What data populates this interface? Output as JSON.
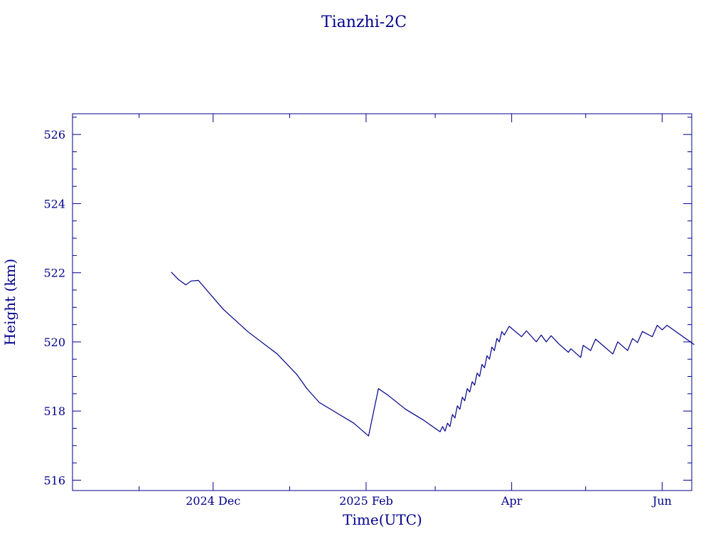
{
  "colors": {
    "ink": "#00008b",
    "background": "#ffffff"
  },
  "chart_data": {
    "type": "line",
    "title": "Tianzhi-2C",
    "xlabel": "Time(UTC)",
    "ylabel": "Height (km)",
    "grid": false,
    "x_range": [
      "2024-10-05",
      "2025-06-13"
    ],
    "ylim": [
      515.7,
      526.6
    ],
    "x_major_ticks": [
      {
        "date": "2024-12-01",
        "label": "2024 Dec"
      },
      {
        "date": "2025-02-01",
        "label": "2025 Feb"
      },
      {
        "date": "2025-04-01",
        "label": "Apr"
      },
      {
        "date": "2025-06-01",
        "label": "Jun"
      }
    ],
    "x_minor_ticks": [
      "2024-11-01",
      "2025-01-01",
      "2025-03-01",
      "2025-05-01"
    ],
    "y_major_ticks": [
      516,
      518,
      520,
      522,
      524,
      526
    ],
    "y_minor_step": 0.5,
    "series": [
      {
        "points": [
          [
            "2024-11-14",
            522.02
          ],
          [
            "2024-11-17",
            521.8
          ],
          [
            "2024-11-20",
            521.65
          ],
          [
            "2024-11-22",
            521.76
          ],
          [
            "2024-11-25",
            521.78
          ],
          [
            "2024-12-05",
            520.95
          ],
          [
            "2024-12-15",
            520.3
          ],
          [
            "2024-12-27",
            519.65
          ],
          [
            "2025-01-04",
            519.05
          ],
          [
            "2025-01-08",
            518.65
          ],
          [
            "2025-01-13",
            518.25
          ],
          [
            "2025-01-20",
            517.95
          ],
          [
            "2025-01-27",
            517.65
          ],
          [
            "2025-01-31",
            517.4
          ],
          [
            "2025-02-02",
            517.28
          ],
          [
            "2025-02-06",
            518.65
          ],
          [
            "2025-02-10",
            518.45
          ],
          [
            "2025-02-17",
            518.05
          ],
          [
            "2025-02-24",
            517.75
          ],
          [
            "2025-03-01",
            517.5
          ],
          [
            "2025-03-03",
            517.4
          ],
          [
            "2025-03-04",
            517.55
          ],
          [
            "2025-03-05",
            517.42
          ],
          [
            "2025-03-06",
            517.65
          ],
          [
            "2025-03-07",
            517.55
          ],
          [
            "2025-03-08",
            517.9
          ],
          [
            "2025-03-09",
            517.8
          ],
          [
            "2025-03-10",
            518.15
          ],
          [
            "2025-03-11",
            518.05
          ],
          [
            "2025-03-12",
            518.4
          ],
          [
            "2025-03-13",
            518.3
          ],
          [
            "2025-03-14",
            518.65
          ],
          [
            "2025-03-15",
            518.55
          ],
          [
            "2025-03-16",
            518.85
          ],
          [
            "2025-03-17",
            518.75
          ],
          [
            "2025-03-18",
            519.1
          ],
          [
            "2025-03-19",
            519.0
          ],
          [
            "2025-03-20",
            519.35
          ],
          [
            "2025-03-21",
            519.25
          ],
          [
            "2025-03-22",
            519.6
          ],
          [
            "2025-03-23",
            519.5
          ],
          [
            "2025-03-24",
            519.85
          ],
          [
            "2025-03-25",
            519.75
          ],
          [
            "2025-03-26",
            520.1
          ],
          [
            "2025-03-27",
            520.0
          ],
          [
            "2025-03-28",
            520.3
          ],
          [
            "2025-03-29",
            520.2
          ],
          [
            "2025-03-31",
            520.45
          ],
          [
            "2025-04-05",
            520.15
          ],
          [
            "2025-04-07",
            520.32
          ],
          [
            "2025-04-11",
            520.0
          ],
          [
            "2025-04-13",
            520.2
          ],
          [
            "2025-04-15",
            520.0
          ],
          [
            "2025-04-17",
            520.18
          ],
          [
            "2025-04-20",
            519.95
          ],
          [
            "2025-04-24",
            519.7
          ],
          [
            "2025-04-25",
            519.8
          ],
          [
            "2025-04-29",
            519.55
          ],
          [
            "2025-04-30",
            519.9
          ],
          [
            "2025-05-03",
            519.75
          ],
          [
            "2025-05-05",
            520.08
          ],
          [
            "2025-05-12",
            519.65
          ],
          [
            "2025-05-14",
            520.0
          ],
          [
            "2025-05-18",
            519.75
          ],
          [
            "2025-05-20",
            520.1
          ],
          [
            "2025-05-22",
            519.98
          ],
          [
            "2025-05-24",
            520.3
          ],
          [
            "2025-05-28",
            520.15
          ],
          [
            "2025-05-30",
            520.48
          ],
          [
            "2025-06-01",
            520.35
          ],
          [
            "2025-06-03",
            520.48
          ],
          [
            "2025-06-14",
            519.92
          ]
        ]
      }
    ]
  }
}
